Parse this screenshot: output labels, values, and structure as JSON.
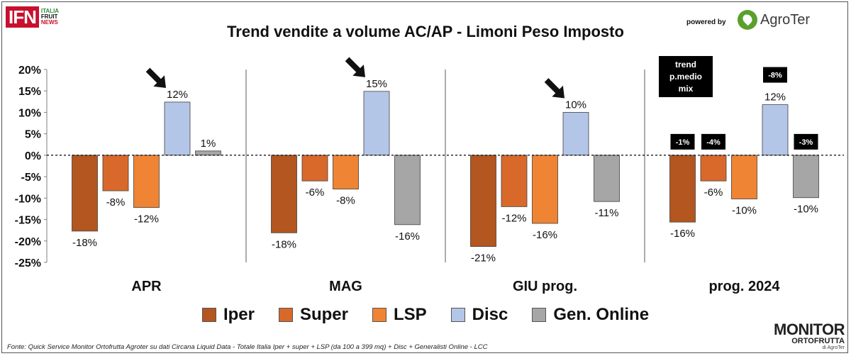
{
  "header": {
    "logo_letters": "IFN",
    "logo_line1": "ITALIA",
    "logo_line2": "FRUIT",
    "logo_line3": "NEWS",
    "title": "Trend vendite a volume AC/AP - Limoni Peso Imposto",
    "powered_by": "powered by",
    "agroter_name": "AgroTer"
  },
  "chart_data": {
    "type": "bar",
    "title": "Trend vendite a volume AC/AP - Limoni Peso Imposto",
    "categories": [
      "APR",
      "MAG",
      "GIU prog.",
      "prog. 2024"
    ],
    "ylim": [
      -25,
      20
    ],
    "yticks": [
      20,
      15,
      10,
      5,
      0,
      -5,
      -10,
      -15,
      -20,
      -25
    ],
    "ytick_labels": [
      "20%",
      "15%",
      "10%",
      "5%",
      "0%",
      "-5%",
      "-10%",
      "-15%",
      "-20%",
      "-25%"
    ],
    "grid": false,
    "legend_position": "bottom",
    "series": [
      {
        "name": "Iper",
        "color": "#b3561f",
        "values": [
          -17.7,
          -18.1,
          -21.3,
          -15.6
        ],
        "labels": [
          "-18%",
          "-18%",
          "-21%",
          "-16%"
        ]
      },
      {
        "name": "Super",
        "color": "#d8692b",
        "values": [
          -8.3,
          -6.0,
          -12.0,
          -6.0
        ],
        "labels": [
          "-8%",
          "-6%",
          "-12%",
          "-6%"
        ]
      },
      {
        "name": "LSP",
        "color": "#ef8434",
        "values": [
          -12.2,
          -7.9,
          -15.9,
          -10.2
        ],
        "labels": [
          "-12%",
          "-8%",
          "-16%",
          "-10%"
        ]
      },
      {
        "name": "Disc",
        "color": "#b4c6e7",
        "values": [
          12.4,
          14.9,
          10.0,
          11.8
        ],
        "labels": [
          "12%",
          "15%",
          "10%",
          "12%"
        ]
      },
      {
        "name": "Gen. Online",
        "color": "#a6a6a6",
        "values": [
          1.0,
          -16.2,
          -10.8,
          -9.9
        ],
        "labels": [
          "1%",
          "-16%",
          "-11%",
          "-10%"
        ]
      }
    ],
    "annotations": {
      "trend_label": "trend\np.medio\nmix",
      "price_mix_boxes": [
        {
          "series": "Iper",
          "text": "-1%"
        },
        {
          "series": "Super",
          "text": "-4%"
        },
        {
          "series": "Disc",
          "text": "-8%"
        },
        {
          "series": "Gen. Online",
          "text": "-3%"
        }
      ],
      "arrows_at_disc_in": [
        "APR",
        "MAG",
        "GIU prog."
      ]
    }
  },
  "footer": {
    "source": "Fonte: Quick Service Monitor Ortofrutta Agroter su dati Circana Liquid Data - Totale Italia Iper + super + LSP (da 100 a 399 mq) + Disc + Generalisti Online - LCC",
    "monitor_line1": "MONITOR",
    "monitor_line2": "ORTOFRUTTA",
    "monitor_line3": "di AgroTer"
  }
}
